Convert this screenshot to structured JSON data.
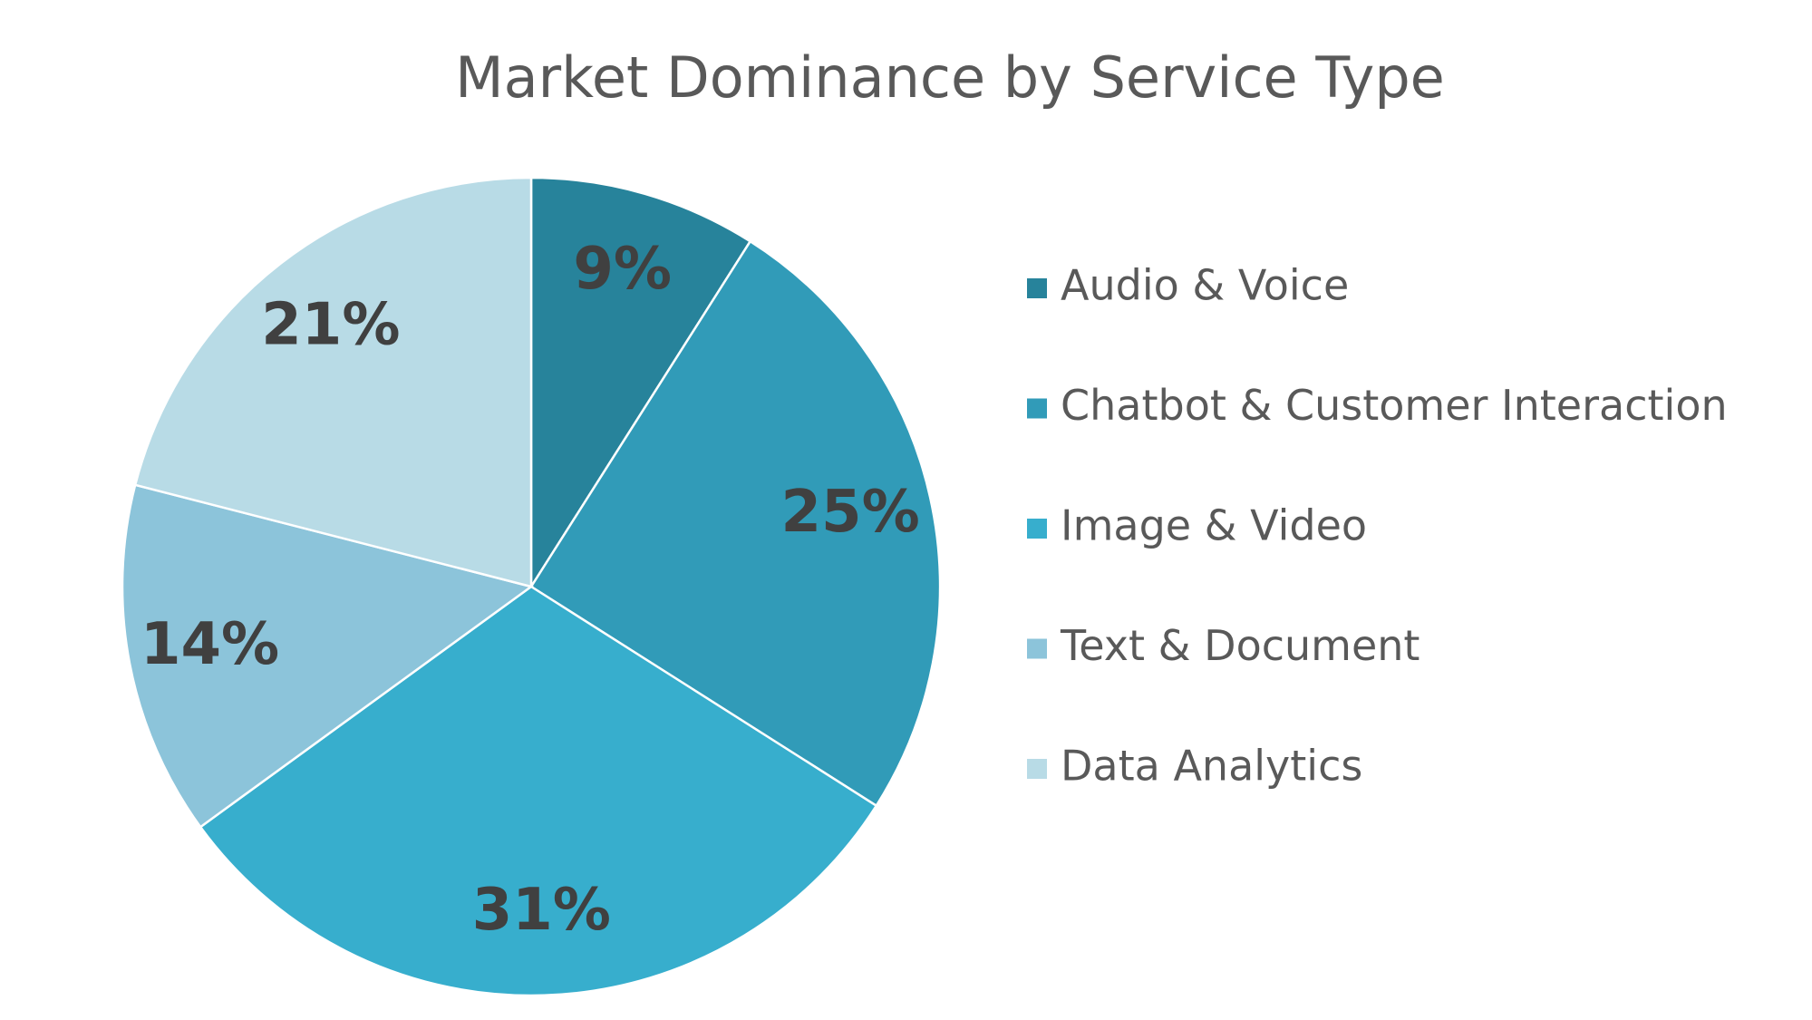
{
  "chart_data": {
    "type": "pie",
    "title": "Market Dominance by Service Type",
    "categories": [
      "Audio & Voice",
      "Chatbot & Customer Interaction",
      "Image & Video",
      "Text & Document",
      "Data Analytics"
    ],
    "values": [
      9,
      25,
      31,
      14,
      21
    ],
    "value_labels": [
      "9%",
      "25%",
      "31%",
      "14%",
      "21%"
    ],
    "colors": [
      "#27839b",
      "#319bb8",
      "#37aecd",
      "#8cc4da",
      "#b8dbe6"
    ],
    "legend": "right"
  }
}
